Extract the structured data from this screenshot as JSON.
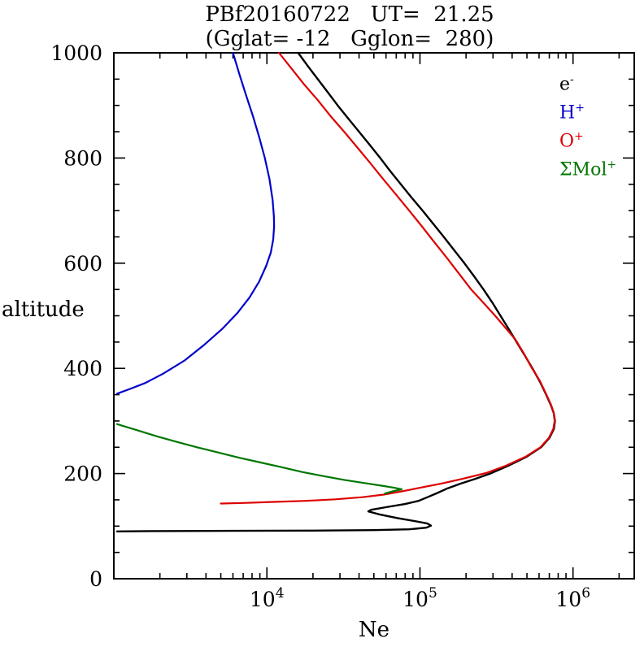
{
  "page": {
    "background": "#ffffff"
  },
  "chart_data": {
    "type": "line",
    "title": "PBf20160722   UT=  21.25",
    "subtitle": "(Gglat= -12   Gglon=  280)",
    "xlabel": "Ne",
    "ylabel": "altitude",
    "x_scale": "log",
    "xlim": [
      1000,
      2511886
    ],
    "ylim": [
      0,
      1000
    ],
    "x_major_tick_exponents": [
      4,
      5,
      6
    ],
    "y_major_ticks": [
      0,
      200,
      400,
      600,
      800,
      1000
    ],
    "y_minor_step": 50,
    "grid": false,
    "legend_position": "upper-right-inside",
    "axis_color": "#000000",
    "legend": [
      {
        "base": "e",
        "sup": "-",
        "color": "#000000"
      },
      {
        "base": "H",
        "sup": "+",
        "color": "#0000cc"
      },
      {
        "base": "O",
        "sup": "+",
        "color": "#dd0000"
      },
      {
        "base": "ΣMol",
        "sup": "+",
        "color": "#007700"
      }
    ],
    "series": [
      {
        "name": "e-",
        "color": "#000000",
        "points_ne_alt": [
          [
            16000,
            1000
          ],
          [
            18500,
            975
          ],
          [
            21500,
            950
          ],
          [
            25000,
            925
          ],
          [
            29000,
            900
          ],
          [
            34000,
            875
          ],
          [
            40000,
            850
          ],
          [
            47000,
            825
          ],
          [
            55000,
            800
          ],
          [
            64000,
            775
          ],
          [
            75000,
            750
          ],
          [
            88000,
            725
          ],
          [
            104000,
            700
          ],
          [
            122000,
            675
          ],
          [
            143000,
            650
          ],
          [
            167000,
            625
          ],
          [
            195000,
            600
          ],
          [
            226000,
            575
          ],
          [
            260000,
            550
          ],
          [
            297000,
            525
          ],
          [
            336000,
            500
          ],
          [
            380000,
            475
          ],
          [
            428000,
            450
          ],
          [
            483000,
            425
          ],
          [
            543000,
            400
          ],
          [
            607000,
            375
          ],
          [
            668000,
            350
          ],
          [
            717000,
            330
          ],
          [
            748000,
            315
          ],
          [
            762000,
            300
          ],
          [
            750000,
            285
          ],
          [
            702000,
            268
          ],
          [
            618000,
            250
          ],
          [
            498000,
            232
          ],
          [
            378000,
            215
          ],
          [
            288000,
            200
          ],
          [
            230000,
            190
          ],
          [
            185000,
            181
          ],
          [
            152000,
            172
          ],
          [
            130000,
            163
          ],
          [
            112000,
            155
          ],
          [
            98000,
            148
          ],
          [
            80000,
            142
          ],
          [
            60000,
            136
          ],
          [
            48000,
            131
          ],
          [
            46000,
            128
          ],
          [
            55000,
            122
          ],
          [
            72000,
            115
          ],
          [
            95000,
            109
          ],
          [
            112000,
            105
          ],
          [
            118000,
            101
          ],
          [
            110000,
            97
          ],
          [
            85000,
            94
          ],
          [
            50000,
            92.5
          ],
          [
            20000,
            91.5
          ],
          [
            6000,
            91
          ],
          [
            1700,
            90.5
          ],
          [
            1050,
            90
          ]
        ]
      },
      {
        "name": "H+",
        "color": "#0000cc",
        "points_ne_alt": [
          [
            6000,
            1000
          ],
          [
            6600,
            960
          ],
          [
            7300,
            920
          ],
          [
            8100,
            880
          ],
          [
            8900,
            840
          ],
          [
            9700,
            800
          ],
          [
            10400,
            760
          ],
          [
            10900,
            720
          ],
          [
            11100,
            690
          ],
          [
            11150,
            670
          ],
          [
            11000,
            645
          ],
          [
            10600,
            620
          ],
          [
            9900,
            595
          ],
          [
            8900,
            565
          ],
          [
            7700,
            535
          ],
          [
            6400,
            505
          ],
          [
            5100,
            475
          ],
          [
            3900,
            445
          ],
          [
            2900,
            415
          ],
          [
            2100,
            390
          ],
          [
            1600,
            372
          ],
          [
            1250,
            360
          ],
          [
            1050,
            352
          ]
        ]
      },
      {
        "name": "O+",
        "color": "#dd0000",
        "points_ne_alt": [
          [
            12000,
            1000
          ],
          [
            14500,
            970
          ],
          [
            17500,
            940
          ],
          [
            21500,
            910
          ],
          [
            26000,
            880
          ],
          [
            32000,
            850
          ],
          [
            39000,
            820
          ],
          [
            47500,
            790
          ],
          [
            57500,
            760
          ],
          [
            70000,
            730
          ],
          [
            85000,
            700
          ],
          [
            103000,
            670
          ],
          [
            124000,
            640
          ],
          [
            150000,
            610
          ],
          [
            180000,
            580
          ],
          [
            216000,
            550
          ],
          [
            259000,
            525
          ],
          [
            310000,
            500
          ],
          [
            355000,
            480
          ],
          [
            420000,
            455
          ],
          [
            478000,
            428
          ],
          [
            540000,
            400
          ],
          [
            608000,
            376
          ],
          [
            670000,
            350
          ],
          [
            720000,
            330
          ],
          [
            748000,
            315
          ],
          [
            758000,
            300
          ],
          [
            744000,
            285
          ],
          [
            696000,
            268
          ],
          [
            612000,
            250
          ],
          [
            490000,
            232
          ],
          [
            365000,
            215
          ],
          [
            270000,
            201
          ],
          [
            190000,
            190
          ],
          [
            138000,
            181
          ],
          [
            100000,
            173
          ],
          [
            76000,
            166
          ],
          [
            58000,
            160
          ],
          [
            42000,
            155
          ],
          [
            28000,
            151
          ],
          [
            18000,
            148
          ],
          [
            11000,
            146
          ],
          [
            7000,
            144
          ],
          [
            5000,
            143
          ]
        ]
      },
      {
        "name": "SigmaMol+",
        "color": "#007700",
        "points_ne_alt": [
          [
            1050,
            294
          ],
          [
            1400,
            283
          ],
          [
            1900,
            271
          ],
          [
            2600,
            260
          ],
          [
            3500,
            250
          ],
          [
            4800,
            240
          ],
          [
            6600,
            230
          ],
          [
            9100,
            221
          ],
          [
            12500,
            212
          ],
          [
            17000,
            203
          ],
          [
            23500,
            195
          ],
          [
            32000,
            188
          ],
          [
            43000,
            182
          ],
          [
            56000,
            177
          ],
          [
            68000,
            173
          ],
          [
            76000,
            170
          ],
          [
            66000,
            166
          ],
          [
            59000,
            162
          ]
        ]
      }
    ]
  }
}
